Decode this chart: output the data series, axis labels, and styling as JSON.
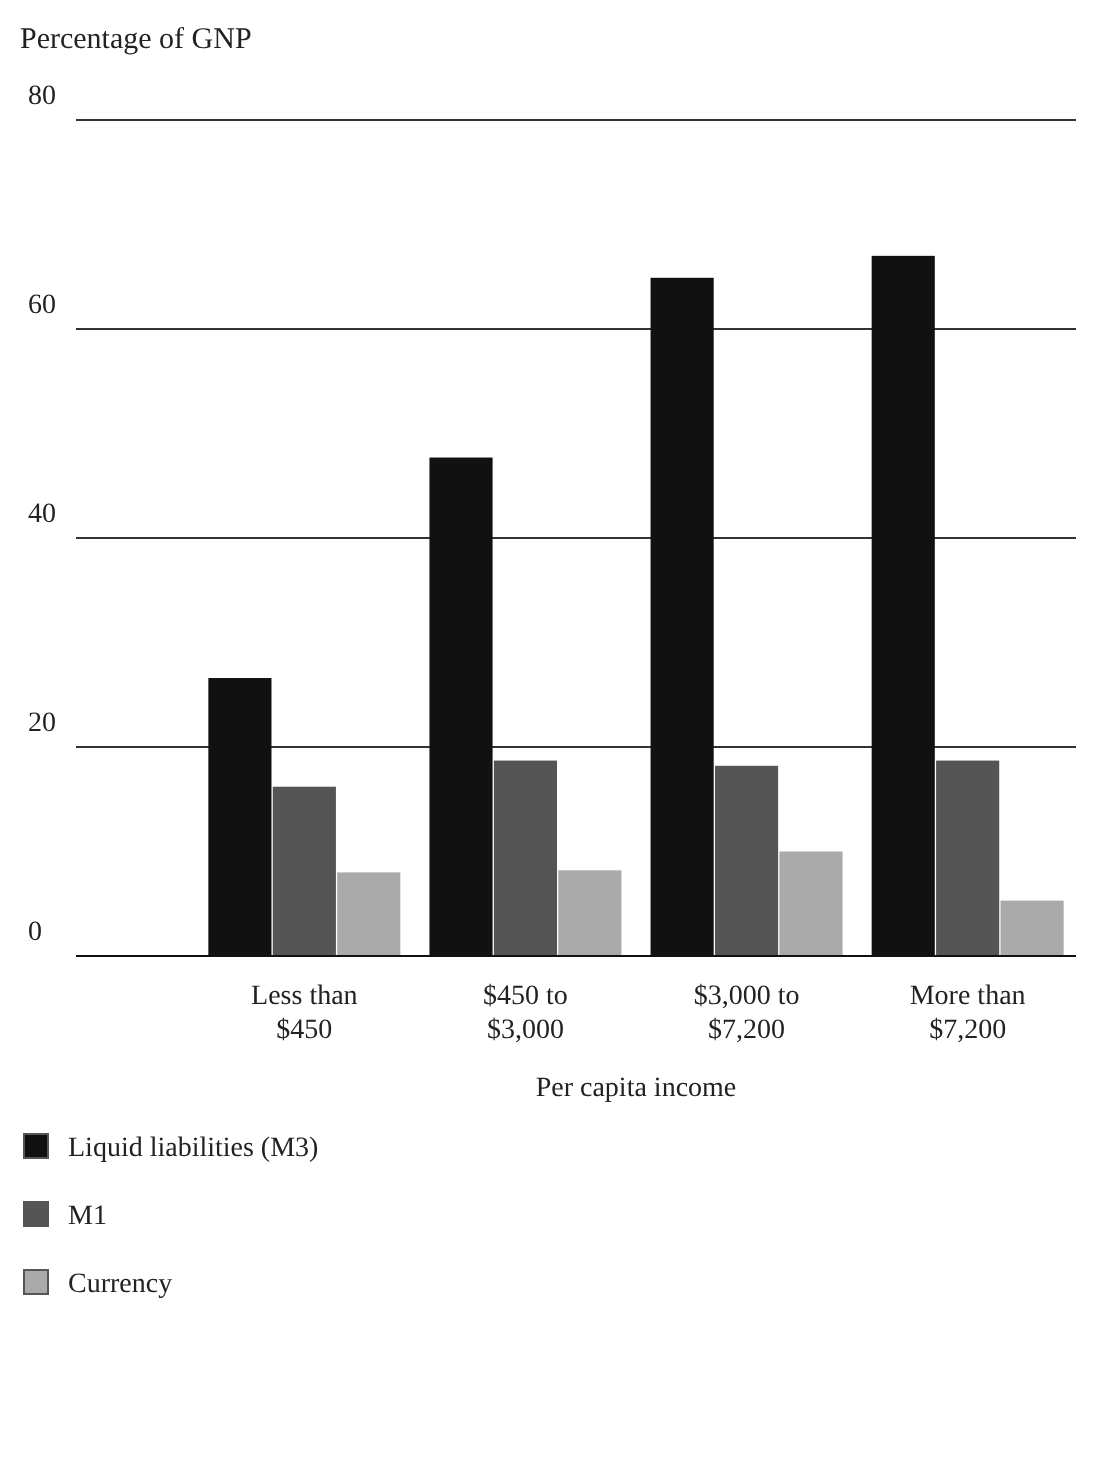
{
  "chart_data": {
    "type": "bar",
    "ylabel": "Percentage of GNP",
    "xlabel": "Per capita income",
    "categories": [
      "Less than $450",
      "$450 to $3,000",
      "$3,000 to $7,200",
      "More than $7,200"
    ],
    "series": [
      {
        "name": "Liquid liabilities (M3)",
        "color": "#111111",
        "values": [
          26.6,
          47.7,
          64.9,
          67.0
        ]
      },
      {
        "name": "M1",
        "color": "#555555",
        "values": [
          16.2,
          18.7,
          18.2,
          18.7
        ]
      },
      {
        "name": "Currency",
        "color": "#aaaaaa",
        "values": [
          8.0,
          8.2,
          10.0,
          5.3
        ]
      }
    ],
    "ylim": [
      0,
      80
    ],
    "yticks": [
      0,
      20,
      40,
      60,
      80
    ],
    "grid": "y",
    "legend": "bottom"
  }
}
